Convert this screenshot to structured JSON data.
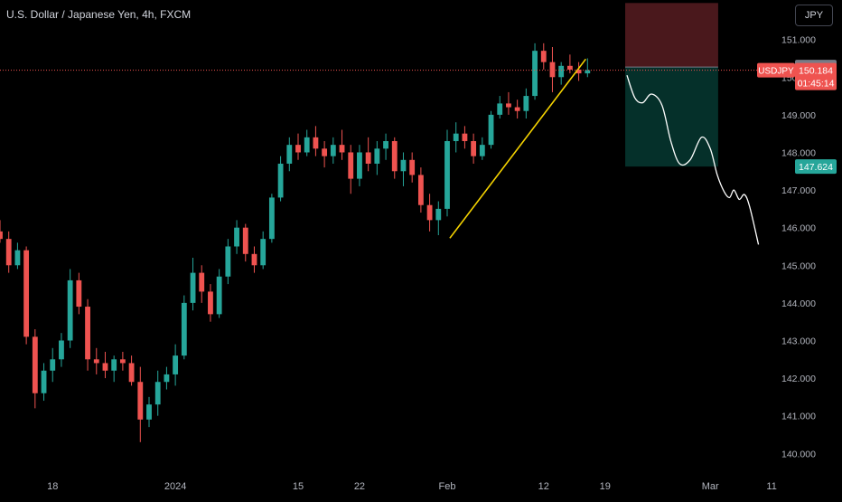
{
  "chart_title": "U.S. Dollar / Japanese Yen, 4h, FXCM",
  "currency_button": "JPY",
  "colors": {
    "background": "#000000",
    "up": "#26a69a",
    "down": "#ef5350",
    "trendline": "#f5d300",
    "projection": "#ffffff",
    "stop_zone": "#4a181c",
    "target_zone": "#05302a",
    "price_line": "#ef5350"
  },
  "chart_data": {
    "type": "candlestick",
    "symbol": "USDJPY",
    "timeframe": "4h",
    "source": "FXCM",
    "y_axis": {
      "ticks": [
        151.0,
        150.0,
        149.0,
        148.0,
        147.0,
        146.0,
        145.0,
        144.0,
        143.0,
        142.0,
        141.0,
        140.0
      ],
      "tick_labels": [
        "151.000",
        "150.000",
        "149.000",
        "148.000",
        "147.000",
        "146.000",
        "145.000",
        "144.000",
        "143.000",
        "142.000",
        "141.000",
        "140.000"
      ],
      "range": [
        139.55,
        152.05
      ]
    },
    "x_axis": {
      "tick_labels": [
        "18",
        "2024",
        "15",
        "22",
        "Feb",
        "12",
        "19",
        "Mar",
        "11"
      ],
      "tick_days": [
        0,
        14,
        28,
        35,
        45,
        56,
        63,
        75,
        82
      ],
      "range_days": [
        -6,
        82.4
      ]
    },
    "price_labels": {
      "entry": {
        "value": 150.269,
        "text": "150.269"
      },
      "current": {
        "symbol": "USDJPY",
        "value": 150.184,
        "text": "150.184",
        "countdown": "01:45:14"
      },
      "target": {
        "value": 147.624,
        "text": "147.624"
      }
    },
    "position": {
      "entry": 150.269,
      "stop": 151.97,
      "target": 147.624,
      "start_day": 65.3,
      "end_day": 75.9
    },
    "trendline": {
      "from": {
        "day": 45.3,
        "price": 145.72
      },
      "to": {
        "day": 60.8,
        "price": 150.48
      }
    },
    "projection": [
      {
        "day": 65.5,
        "price": 150.05
      },
      {
        "day": 66.4,
        "price": 149.45
      },
      {
        "day": 67.3,
        "price": 149.32
      },
      {
        "day": 68.3,
        "price": 149.55
      },
      {
        "day": 69.5,
        "price": 149.25
      },
      {
        "day": 70.5,
        "price": 148.3
      },
      {
        "day": 71.5,
        "price": 147.7
      },
      {
        "day": 72.7,
        "price": 147.8
      },
      {
        "day": 74.0,
        "price": 148.4
      },
      {
        "day": 75.0,
        "price": 148.1
      },
      {
        "day": 75.8,
        "price": 147.4
      },
      {
        "day": 76.6,
        "price": 146.95
      },
      {
        "day": 77.2,
        "price": 146.8
      },
      {
        "day": 77.7,
        "price": 147.0
      },
      {
        "day": 78.3,
        "price": 146.75
      },
      {
        "day": 78.9,
        "price": 146.88
      },
      {
        "day": 79.5,
        "price": 146.55
      },
      {
        "day": 80.5,
        "price": 145.55
      }
    ],
    "candles": [
      {
        "d": -6.0,
        "o": 145.9,
        "h": 146.2,
        "l": 145.6,
        "c": 145.7
      },
      {
        "d": -5.0,
        "o": 145.7,
        "h": 145.9,
        "l": 144.8,
        "c": 145.0
      },
      {
        "d": -4.0,
        "o": 145.0,
        "h": 145.6,
        "l": 144.9,
        "c": 145.4
      },
      {
        "d": -3.0,
        "o": 145.4,
        "h": 145.5,
        "l": 142.9,
        "c": 143.1
      },
      {
        "d": -2.0,
        "o": 143.1,
        "h": 143.3,
        "l": 141.2,
        "c": 141.6
      },
      {
        "d": -1.0,
        "o": 141.6,
        "h": 142.4,
        "l": 141.4,
        "c": 142.2
      },
      {
        "d": 0.0,
        "o": 142.2,
        "h": 142.8,
        "l": 141.9,
        "c": 142.5
      },
      {
        "d": 1.0,
        "o": 142.5,
        "h": 143.2,
        "l": 142.3,
        "c": 143.0
      },
      {
        "d": 2.0,
        "o": 143.0,
        "h": 144.9,
        "l": 142.8,
        "c": 144.6
      },
      {
        "d": 3.0,
        "o": 144.6,
        "h": 144.8,
        "l": 143.7,
        "c": 143.9
      },
      {
        "d": 4.0,
        "o": 143.9,
        "h": 144.1,
        "l": 142.2,
        "c": 142.5
      },
      {
        "d": 5.0,
        "o": 142.5,
        "h": 142.8,
        "l": 142.1,
        "c": 142.4
      },
      {
        "d": 6.0,
        "o": 142.4,
        "h": 142.7,
        "l": 142.0,
        "c": 142.2
      },
      {
        "d": 7.0,
        "o": 142.2,
        "h": 142.6,
        "l": 141.9,
        "c": 142.5
      },
      {
        "d": 8.0,
        "o": 142.5,
        "h": 142.7,
        "l": 142.2,
        "c": 142.4
      },
      {
        "d": 9.0,
        "o": 142.4,
        "h": 142.6,
        "l": 141.8,
        "c": 141.9
      },
      {
        "d": 10.0,
        "o": 141.9,
        "h": 142.3,
        "l": 140.3,
        "c": 140.9
      },
      {
        "d": 11.0,
        "o": 140.9,
        "h": 141.5,
        "l": 140.7,
        "c": 141.3
      },
      {
        "d": 12.0,
        "o": 141.3,
        "h": 142.2,
        "l": 141.0,
        "c": 141.9
      },
      {
        "d": 13.0,
        "o": 141.9,
        "h": 142.3,
        "l": 141.7,
        "c": 142.1
      },
      {
        "d": 14.0,
        "o": 142.1,
        "h": 142.9,
        "l": 141.8,
        "c": 142.6
      },
      {
        "d": 15.0,
        "o": 142.6,
        "h": 144.2,
        "l": 142.5,
        "c": 144.0
      },
      {
        "d": 16.0,
        "o": 144.0,
        "h": 145.2,
        "l": 143.8,
        "c": 144.8
      },
      {
        "d": 17.0,
        "o": 144.8,
        "h": 145.0,
        "l": 144.0,
        "c": 144.3
      },
      {
        "d": 18.0,
        "o": 144.3,
        "h": 144.5,
        "l": 143.5,
        "c": 143.7
      },
      {
        "d": 19.0,
        "o": 143.7,
        "h": 144.9,
        "l": 143.6,
        "c": 144.7
      },
      {
        "d": 20.0,
        "o": 144.7,
        "h": 145.7,
        "l": 144.5,
        "c": 145.5
      },
      {
        "d": 21.0,
        "o": 145.5,
        "h": 146.2,
        "l": 145.3,
        "c": 146.0
      },
      {
        "d": 22.0,
        "o": 146.0,
        "h": 146.1,
        "l": 145.1,
        "c": 145.3
      },
      {
        "d": 23.0,
        "o": 145.3,
        "h": 145.5,
        "l": 144.8,
        "c": 145.0
      },
      {
        "d": 24.0,
        "o": 145.0,
        "h": 145.9,
        "l": 144.9,
        "c": 145.7
      },
      {
        "d": 25.0,
        "o": 145.7,
        "h": 146.9,
        "l": 145.6,
        "c": 146.8
      },
      {
        "d": 26.0,
        "o": 146.8,
        "h": 147.9,
        "l": 146.7,
        "c": 147.7
      },
      {
        "d": 27.0,
        "o": 147.7,
        "h": 148.4,
        "l": 147.5,
        "c": 148.2
      },
      {
        "d": 28.0,
        "o": 148.2,
        "h": 148.5,
        "l": 147.8,
        "c": 148.0
      },
      {
        "d": 29.0,
        "o": 148.0,
        "h": 148.6,
        "l": 147.9,
        "c": 148.4
      },
      {
        "d": 30.0,
        "o": 148.4,
        "h": 148.7,
        "l": 147.9,
        "c": 148.1
      },
      {
        "d": 31.0,
        "o": 148.1,
        "h": 148.3,
        "l": 147.6,
        "c": 147.9
      },
      {
        "d": 32.0,
        "o": 147.9,
        "h": 148.4,
        "l": 147.7,
        "c": 148.2
      },
      {
        "d": 33.0,
        "o": 148.2,
        "h": 148.6,
        "l": 147.8,
        "c": 148.0
      },
      {
        "d": 34.0,
        "o": 148.0,
        "h": 148.2,
        "l": 146.9,
        "c": 147.3
      },
      {
        "d": 35.0,
        "o": 147.3,
        "h": 148.2,
        "l": 147.1,
        "c": 148.0
      },
      {
        "d": 36.0,
        "o": 148.0,
        "h": 148.4,
        "l": 147.5,
        "c": 147.7
      },
      {
        "d": 37.0,
        "o": 147.7,
        "h": 148.3,
        "l": 147.4,
        "c": 148.1
      },
      {
        "d": 38.0,
        "o": 148.1,
        "h": 148.5,
        "l": 147.8,
        "c": 148.3
      },
      {
        "d": 39.0,
        "o": 148.3,
        "h": 148.4,
        "l": 147.3,
        "c": 147.5
      },
      {
        "d": 40.0,
        "o": 147.5,
        "h": 148.0,
        "l": 147.1,
        "c": 147.8
      },
      {
        "d": 41.0,
        "o": 147.8,
        "h": 148.0,
        "l": 147.2,
        "c": 147.4
      },
      {
        "d": 42.0,
        "o": 147.4,
        "h": 147.6,
        "l": 146.4,
        "c": 146.6
      },
      {
        "d": 43.0,
        "o": 146.6,
        "h": 146.9,
        "l": 145.9,
        "c": 146.2
      },
      {
        "d": 44.0,
        "o": 146.2,
        "h": 146.7,
        "l": 145.8,
        "c": 146.5
      },
      {
        "d": 45.0,
        "o": 146.5,
        "h": 148.6,
        "l": 146.3,
        "c": 148.3
      },
      {
        "d": 46.0,
        "o": 148.3,
        "h": 148.8,
        "l": 148.0,
        "c": 148.5
      },
      {
        "d": 47.0,
        "o": 148.5,
        "h": 148.7,
        "l": 148.1,
        "c": 148.3
      },
      {
        "d": 48.0,
        "o": 148.3,
        "h": 148.5,
        "l": 147.7,
        "c": 147.9
      },
      {
        "d": 49.0,
        "o": 147.9,
        "h": 148.4,
        "l": 147.8,
        "c": 148.2
      },
      {
        "d": 50.0,
        "o": 148.2,
        "h": 149.1,
        "l": 148.1,
        "c": 149.0
      },
      {
        "d": 51.0,
        "o": 149.0,
        "h": 149.5,
        "l": 148.9,
        "c": 149.3
      },
      {
        "d": 52.0,
        "o": 149.3,
        "h": 149.6,
        "l": 149.0,
        "c": 149.2
      },
      {
        "d": 53.0,
        "o": 149.2,
        "h": 149.4,
        "l": 148.9,
        "c": 149.1
      },
      {
        "d": 54.0,
        "o": 149.1,
        "h": 149.7,
        "l": 148.9,
        "c": 149.5
      },
      {
        "d": 55.0,
        "o": 149.5,
        "h": 150.9,
        "l": 149.4,
        "c": 150.7
      },
      {
        "d": 56.0,
        "o": 150.7,
        "h": 150.9,
        "l": 150.2,
        "c": 150.4
      },
      {
        "d": 57.0,
        "o": 150.4,
        "h": 150.8,
        "l": 149.6,
        "c": 150.0
      },
      {
        "d": 58.0,
        "o": 150.0,
        "h": 150.4,
        "l": 149.8,
        "c": 150.3
      },
      {
        "d": 59.0,
        "o": 150.3,
        "h": 150.6,
        "l": 150.1,
        "c": 150.2
      },
      {
        "d": 60.0,
        "o": 150.2,
        "h": 150.4,
        "l": 149.9,
        "c": 150.1
      },
      {
        "d": 61.0,
        "o": 150.1,
        "h": 150.5,
        "l": 150.0,
        "c": 150.184
      }
    ]
  }
}
